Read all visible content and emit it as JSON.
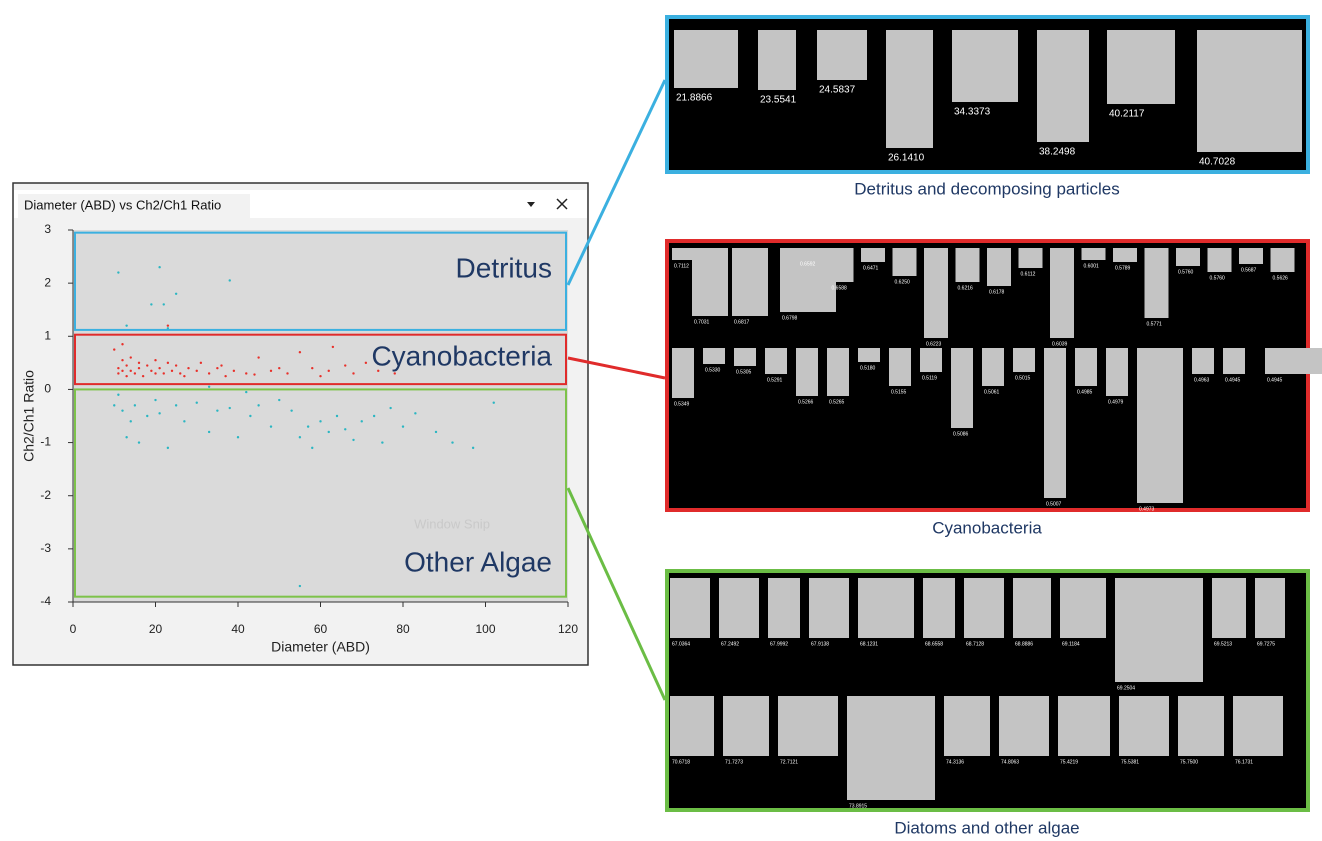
{
  "window": {
    "title": "Diameter (ABD) vs Ch2/Ch1 Ratio",
    "watermark": "Window Snip"
  },
  "chart_data": {
    "type": "scatter",
    "xlabel": "Diameter (ABD)",
    "ylabel": "Ch2/Ch1 Ratio",
    "xlim": [
      0,
      120
    ],
    "ylim": [
      -4,
      3
    ],
    "xticks": [
      0,
      20,
      40,
      60,
      80,
      100,
      120
    ],
    "yticks": [
      -4,
      -3,
      -2,
      -1,
      0,
      1,
      2,
      3
    ],
    "regions": [
      {
        "label": "Detritus",
        "color": "#3bb0e0",
        "ylim": [
          1.12,
          2.95
        ]
      },
      {
        "label": "Cyanobacteria",
        "color": "#e02b2b",
        "ylim": [
          0.1,
          1.03
        ]
      },
      {
        "label": "Other Algae",
        "color": "#7dc24a",
        "ylim": [
          -3.9,
          0
        ]
      }
    ],
    "series": [
      {
        "color": "#e8302a",
        "x": [
          10,
          11,
          11,
          12,
          12,
          13,
          13,
          14,
          14,
          15,
          16,
          16,
          17,
          18,
          19,
          20,
          20,
          21,
          22,
          23,
          24,
          25,
          26,
          27,
          28,
          30,
          31,
          33,
          35,
          37,
          39,
          42,
          45,
          48,
          52,
          55,
          58,
          60,
          63,
          66,
          68,
          71,
          74,
          78,
          12,
          23,
          36,
          44,
          50,
          62
        ],
        "values": [
          0.75,
          0.4,
          0.3,
          0.55,
          0.35,
          0.45,
          0.25,
          0.6,
          0.35,
          0.3,
          0.5,
          0.4,
          0.25,
          0.45,
          0.35,
          0.55,
          0.3,
          0.4,
          0.3,
          0.5,
          0.35,
          0.45,
          0.3,
          0.25,
          0.4,
          0.35,
          0.5,
          0.3,
          0.4,
          0.25,
          0.35,
          0.3,
          0.6,
          0.35,
          0.3,
          0.7,
          0.4,
          0.25,
          0.8,
          0.45,
          0.3,
          0.5,
          0.35,
          0.3,
          0.85,
          1.2,
          0.45,
          0.28,
          0.4,
          0.35
        ]
      },
      {
        "color": "#2bb6c2",
        "x": [
          11,
          12,
          13,
          15,
          16,
          18,
          20,
          21,
          23,
          25,
          27,
          30,
          33,
          35,
          38,
          40,
          43,
          45,
          48,
          50,
          53,
          55,
          57,
          58,
          60,
          62,
          64,
          66,
          68,
          70,
          73,
          75,
          77,
          80,
          83,
          88,
          92,
          97,
          102,
          33,
          42,
          10,
          14,
          55,
          11,
          21,
          19,
          22,
          25,
          38,
          23,
          13
        ],
        "values": [
          -0.1,
          -0.4,
          -0.9,
          -0.3,
          -1.0,
          -0.5,
          -0.2,
          -0.45,
          -1.1,
          -0.3,
          -0.6,
          -0.25,
          -0.8,
          -0.4,
          -0.35,
          -0.9,
          -0.5,
          -0.3,
          -0.7,
          -0.2,
          -0.4,
          -0.9,
          -0.7,
          -1.1,
          -0.6,
          -0.8,
          -0.5,
          -0.75,
          -0.95,
          -0.6,
          -0.5,
          -1.0,
          -0.35,
          -0.7,
          -0.45,
          -0.8,
          -1.0,
          -1.1,
          -0.25,
          0.05,
          -0.05,
          -0.3,
          -0.6,
          -3.7,
          2.2,
          2.3,
          1.6,
          1.6,
          1.8,
          2.05,
          1.15,
          1.2
        ]
      }
    ]
  },
  "galleries": [
    {
      "caption": "Detritus and decomposing particles",
      "color": "#3bb0e0",
      "labels": [
        "21.8866",
        "23.5541",
        "24.5837",
        "26.1410",
        "34.3373",
        "38.2498",
        "40.2117",
        "40.7028"
      ]
    },
    {
      "caption": "Cyanobacteria",
      "color": "#e02b2b",
      "labels": [
        "0.7112",
        "0.7031",
        "0.6817",
        "0.6798",
        "0.6592",
        "0.6588",
        "0.6471",
        "0.6250",
        "0.6223",
        "0.6216",
        "0.6178",
        "0.6112",
        "0.6039",
        "0.6001",
        "0.5789",
        "0.5771",
        "0.5760",
        "0.5760",
        "0.5687",
        "0.5626",
        "0.5349",
        "0.5330",
        "0.5305",
        "0.5291",
        "0.5266",
        "0.5265",
        "0.5180",
        "0.5155",
        "0.5119",
        "0.5086",
        "0.5061",
        "0.5015",
        "0.5007",
        "0.4985",
        "0.4979",
        "0.4973",
        "0.4963",
        "0.4945",
        "0.4945"
      ]
    },
    {
      "caption": "Diatoms and other algae",
      "color": "#6bbd45",
      "labels": [
        "67.0364",
        "67.2492",
        "67.9992",
        "67.9138",
        "68.1231",
        "68.6558",
        "68.7128",
        "68.8886",
        "69.1184",
        "69.2504",
        "69.5213",
        "69.7275",
        "70.6718",
        "71.7273",
        "72.7121",
        "73.8915",
        "74.3136",
        "74.8063",
        "75.4219",
        "75.5381",
        "75.7500",
        "76.1731"
      ]
    }
  ]
}
